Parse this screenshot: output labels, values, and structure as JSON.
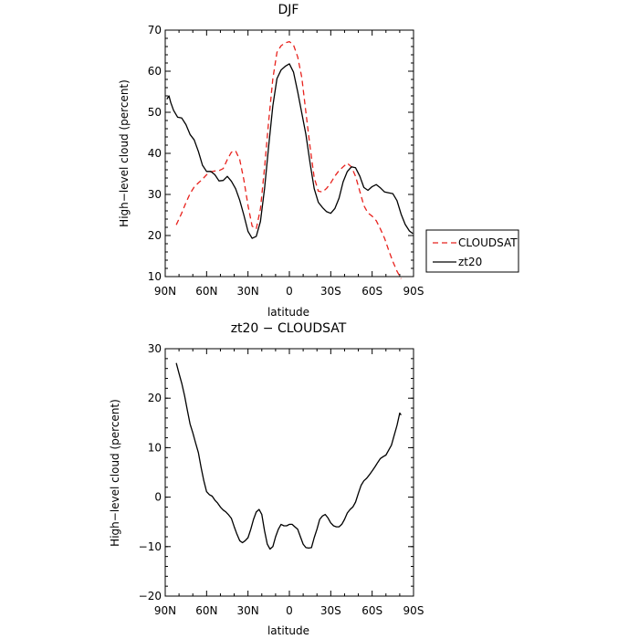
{
  "chart_data": [
    {
      "type": "line",
      "title": "DJF",
      "xlabel": "latitude",
      "ylabel": "High−level cloud (percent)",
      "x_tick_labels": [
        "90N",
        "60N",
        "30N",
        "0",
        "30S",
        "60S",
        "90S"
      ],
      "x_tick_values": [
        90,
        60,
        30,
        0,
        -30,
        -60,
        -90
      ],
      "xlim": [
        90,
        -90
      ],
      "ylim": [
        10,
        70
      ],
      "y_ticks": [
        10,
        20,
        30,
        40,
        50,
        60,
        70
      ],
      "grid": false,
      "legend_position": "right",
      "series": [
        {
          "name": "CLOUDSAT",
          "color": "#e8231e",
          "style": "dashed",
          "x": [
            82,
            78,
            75,
            72,
            69,
            66,
            63,
            60,
            57,
            54,
            51,
            48,
            45,
            42,
            39,
            36,
            33,
            30,
            27,
            24,
            21,
            18,
            15,
            12,
            9,
            6,
            3,
            0,
            -3,
            -6,
            -9,
            -12,
            -15,
            -18,
            -21,
            -24,
            -27,
            -30,
            -33,
            -36,
            -39,
            -42,
            -45,
            -48,
            -51,
            -54,
            -57,
            -60,
            -63,
            -66,
            -69,
            -72,
            -75,
            -78,
            -81
          ],
          "y": [
            22.6,
            25.5,
            28,
            30.2,
            31.8,
            32.8,
            33.7,
            34.8,
            35.5,
            35.7,
            35.8,
            36.3,
            38.5,
            40.3,
            40.6,
            38.5,
            33.6,
            27.3,
            22.3,
            21.6,
            26.5,
            36.5,
            47.8,
            58.2,
            64.6,
            66.2,
            66.9,
            67.2,
            66.4,
            63.5,
            58.5,
            50,
            41.5,
            34.1,
            30.8,
            30.6,
            31.5,
            32.8,
            34.5,
            35.8,
            36.7,
            37.6,
            36.7,
            34.4,
            30.8,
            27.3,
            25.5,
            24.7,
            23.6,
            21.6,
            19.3,
            16.4,
            13.7,
            11.3,
            9.5
          ]
        },
        {
          "name": "zt20",
          "color": "#000000",
          "style": "solid",
          "x": [
            88.8,
            87.3,
            86,
            84,
            81,
            78,
            75,
            72,
            69,
            66,
            63,
            60,
            57,
            54,
            51,
            48,
            45,
            42,
            39,
            36,
            33,
            30,
            27,
            24,
            21,
            18,
            15,
            12,
            9,
            6,
            3,
            0,
            -3,
            -6,
            -9,
            -12,
            -15,
            -18,
            -21,
            -24,
            -27,
            -30,
            -33,
            -36,
            -39,
            -42,
            -45,
            -48,
            -51,
            -54,
            -57,
            -60,
            -63,
            -66,
            -69,
            -72,
            -75,
            -78,
            -81,
            -84,
            -87,
            -89.5
          ],
          "y": [
            53.2,
            54,
            52.4,
            50.5,
            48.8,
            48.6,
            47,
            44.6,
            43.3,
            40.5,
            37.1,
            35.6,
            35.6,
            34.8,
            33.3,
            33.4,
            34.4,
            33.2,
            31.4,
            28.6,
            25,
            21,
            19.3,
            19.8,
            23.4,
            31.4,
            41.7,
            51.6,
            58.2,
            60.3,
            61.2,
            61.8,
            59.8,
            55,
            49.8,
            44.6,
            37.6,
            31.4,
            28.1,
            26.8,
            25.8,
            25.4,
            26.6,
            29.1,
            33.1,
            35.6,
            36.7,
            36.5,
            34.5,
            31.7,
            31,
            31.9,
            32.4,
            31.6,
            30.6,
            30.4,
            30.2,
            28.5,
            25.2,
            22.7,
            21.1,
            20.5
          ]
        }
      ]
    },
    {
      "type": "line",
      "title": "zt20 − CLOUDSAT",
      "xlabel": "latitude",
      "ylabel": "High−level cloud (percent)",
      "x_tick_labels": [
        "90N",
        "60N",
        "30N",
        "0",
        "30S",
        "60S",
        "90S"
      ],
      "x_tick_values": [
        90,
        60,
        30,
        0,
        -30,
        -60,
        -90
      ],
      "xlim": [
        90,
        -90
      ],
      "ylim": [
        -20,
        30
      ],
      "y_ticks": [
        -20,
        -10,
        0,
        10,
        20,
        30
      ],
      "grid": false,
      "series": [
        {
          "color": "#000000",
          "style": "solid",
          "x": [
            82,
            80,
            78,
            76,
            74,
            72,
            70,
            68,
            66,
            64,
            62,
            60,
            58,
            56,
            54,
            52,
            50,
            48,
            46,
            44,
            42,
            40,
            38,
            36,
            34,
            32,
            30,
            28,
            26,
            24,
            22,
            20,
            18,
            16,
            14,
            12,
            10,
            8,
            6,
            4,
            2,
            0,
            -2,
            -4,
            -6,
            -8,
            -10,
            -12,
            -14,
            -16,
            -18,
            -20,
            -22,
            -24,
            -26,
            -28,
            -30,
            -32,
            -34,
            -36,
            -38,
            -40,
            -42,
            -44,
            -46,
            -48,
            -50,
            -52,
            -54,
            -56,
            -58,
            -60,
            -62,
            -64,
            -66,
            -68,
            -70,
            -72,
            -74,
            -76,
            -78,
            -80,
            -81
          ],
          "y": [
            27.1,
            25,
            23,
            20.5,
            17.6,
            14.8,
            13,
            11,
            9,
            6,
            3.3,
            1.1,
            0.5,
            0.2,
            -0.6,
            -1.2,
            -2,
            -2.6,
            -3,
            -3.6,
            -4.3,
            -6,
            -7.5,
            -8.8,
            -9.2,
            -8.8,
            -8.2,
            -6.5,
            -4.5,
            -3,
            -2.5,
            -3.5,
            -6.8,
            -9.5,
            -10.5,
            -10,
            -8,
            -6.5,
            -5.5,
            -5.8,
            -5.8,
            -5.5,
            -5.5,
            -6,
            -6.5,
            -8,
            -9.5,
            -10.2,
            -10.3,
            -10.2,
            -8.2,
            -6.5,
            -4.5,
            -3.8,
            -3.5,
            -4.2,
            -5.2,
            -5.8,
            -6,
            -6,
            -5.5,
            -4.5,
            -3.2,
            -2.5,
            -2,
            -1,
            0.8,
            2.4,
            3.3,
            3.8,
            4.5,
            5.3,
            6.1,
            7,
            7.8,
            8.2,
            8.5,
            9.5,
            10.5,
            12.5,
            14.5,
            17,
            16.6
          ]
        }
      ]
    }
  ]
}
